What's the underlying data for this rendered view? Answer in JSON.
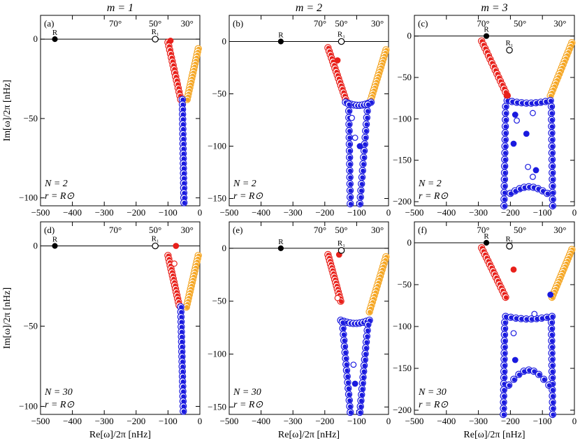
{
  "figure": {
    "col_titles": [
      "m = 1",
      "m = 2",
      "m = 3"
    ],
    "y_label": "Im[ω]/2π [nHz]",
    "x_label": "Re[ω]/2π [nHz]",
    "x_ticks": [
      -500,
      -400,
      -300,
      -200,
      -100,
      0
    ],
    "colors": {
      "red": "#e8201a",
      "orange": "#f5a623",
      "blue": "#1a1adf",
      "black": "#000000"
    },
    "legend_r": "r = R⊙"
  },
  "chart_data": [
    {
      "id": "a",
      "type": "scatter",
      "panel_label": "(a)",
      "m": 1,
      "N_label": "N = 2",
      "N": 2,
      "xlim": [
        -500,
        0
      ],
      "ylim": [
        -105,
        15
      ],
      "yticks": [
        0,
        -50,
        -100
      ],
      "lat_labels": [
        {
          "text": "70°",
          "x": -265
        },
        {
          "text": "50°",
          "x": -140
        },
        {
          "text": "30°",
          "x": -40
        }
      ],
      "R": {
        "label": "R",
        "x": -455,
        "y": 0
      },
      "R1": {
        "label": "R₁",
        "x": -140,
        "y": 0
      },
      "red": {
        "x_range": [
          -100,
          -60
        ],
        "y_range": [
          -2,
          -38
        ]
      },
      "orange": {
        "x_range": [
          -5,
          -40
        ],
        "y_range": [
          -6,
          -38
        ]
      },
      "blue": {
        "x_start": -55,
        "x_end": -50,
        "y_start": -38,
        "y_end": -103
      },
      "extra_points": [
        {
          "color": "red",
          "x": -92,
          "y": -1,
          "filled": true
        }
      ]
    },
    {
      "id": "b",
      "type": "scatter",
      "panel_label": "(b)",
      "m": 2,
      "N_label": "N = 2",
      "N": 2,
      "xlim": [
        -500,
        0
      ],
      "ylim": [
        -157,
        25
      ],
      "yticks": [
        0,
        -50,
        -100,
        -150
      ],
      "lat_labels": [
        {
          "text": "70°",
          "x": -215
        },
        {
          "text": "50°",
          "x": -148
        },
        {
          "text": "30°",
          "x": -35
        }
      ],
      "R": {
        "label": "R",
        "x": -338,
        "y": 0
      },
      "R1": {
        "label": "R₁",
        "x": -148,
        "y": 0
      },
      "red": {
        "x_range": [
          -190,
          -135
        ],
        "y_range": [
          -6,
          -55
        ]
      },
      "orange": {
        "x_range": [
          -8,
          -55
        ],
        "y_range": [
          -8,
          -55
        ]
      },
      "blue_band": {
        "x_from": -135,
        "x_to": -55,
        "y": -58
      },
      "blue_branches": [
        {
          "x_start": -125,
          "x_end": -120,
          "y_start": -60,
          "y_end": -155
        },
        {
          "x_start": -65,
          "x_end": -90,
          "y_start": -60,
          "y_end": -155
        }
      ],
      "extra_points": [
        {
          "color": "red",
          "x": -160,
          "y": -18,
          "filled": true
        },
        {
          "color": "blue",
          "x": -115,
          "y": -73,
          "filled": false
        },
        {
          "color": "blue",
          "x": -105,
          "y": -92,
          "filled": false
        },
        {
          "color": "blue",
          "x": -90,
          "y": -100,
          "filled": true
        }
      ]
    },
    {
      "id": "c",
      "type": "scatter",
      "panel_label": "(c)",
      "m": 3,
      "N_label": "N = 2",
      "N": 2,
      "xlim": [
        -500,
        0
      ],
      "ylim": [
        -205,
        25
      ],
      "yticks": [
        0,
        -50,
        -100,
        -150,
        -200
      ],
      "lat_labels": [
        {
          "text": "70°",
          "x": -285
        },
        {
          "text": "50°",
          "x": -170
        },
        {
          "text": "30°",
          "x": -45
        }
      ],
      "R": {
        "label": "R",
        "x": -275,
        "y": 0
      },
      "R1": {
        "label": "R₁",
        "x": -203,
        "y": -17
      },
      "red": {
        "x_range": [
          -290,
          -210
        ],
        "y_range": [
          -6,
          -72
        ]
      },
      "orange": {
        "x_range": [
          -8,
          -75
        ],
        "y_range": [
          -8,
          -72
        ]
      },
      "blue_band": {
        "x_from": -210,
        "x_to": -75,
        "y": -78
      },
      "blue_branches": [
        {
          "x_start": -215,
          "x_end": -220,
          "y_start": -85,
          "y_end": -205
        },
        {
          "x_start": -72,
          "x_end": -68,
          "y_start": -85,
          "y_end": -205
        }
      ],
      "blue_arc": {
        "x_from": -200,
        "x_to": -85,
        "y_edge": -190,
        "y_top": -182
      },
      "extra_points": [
        {
          "color": "red",
          "x": -210,
          "y": -72,
          "filled": true
        },
        {
          "color": "blue",
          "x": -185,
          "y": -95,
          "filled": true
        },
        {
          "color": "blue",
          "x": -180,
          "y": -102,
          "filled": false
        },
        {
          "color": "blue",
          "x": -130,
          "y": -93,
          "filled": false
        },
        {
          "color": "blue",
          "x": -150,
          "y": -118,
          "filled": true
        },
        {
          "color": "blue",
          "x": -190,
          "y": -130,
          "filled": true
        },
        {
          "color": "blue",
          "x": -145,
          "y": -158,
          "filled": false
        },
        {
          "color": "blue",
          "x": -120,
          "y": -162,
          "filled": true
        },
        {
          "color": "blue",
          "x": -130,
          "y": -170,
          "filled": false
        }
      ]
    },
    {
      "id": "d",
      "type": "scatter",
      "panel_label": "(d)",
      "m": 1,
      "N_label": "N = 30",
      "N": 30,
      "xlim": [
        -500,
        0
      ],
      "ylim": [
        -105,
        15
      ],
      "yticks": [
        0,
        -50,
        -100
      ],
      "lat_labels": [
        {
          "text": "70°",
          "x": -265
        },
        {
          "text": "50°",
          "x": -140
        },
        {
          "text": "30°",
          "x": -40
        }
      ],
      "R": {
        "label": "R",
        "x": -455,
        "y": 0
      },
      "R1": {
        "label": "R₁",
        "x": -140,
        "y": 0
      },
      "red": {
        "x_range": [
          -100,
          -65
        ],
        "y_range": [
          -6,
          -37
        ]
      },
      "orange": {
        "x_range": [
          -5,
          -42
        ],
        "y_range": [
          -6,
          -38
        ]
      },
      "blue": {
        "x_start": -60,
        "x_end": -52,
        "y_start": -38,
        "y_end": -103
      },
      "extra_points": [
        {
          "color": "red",
          "x": -75,
          "y": 0,
          "filled": true
        },
        {
          "color": "red",
          "x": -80,
          "y": -11,
          "filled": false
        }
      ]
    },
    {
      "id": "e",
      "type": "scatter",
      "panel_label": "(e)",
      "m": 2,
      "N_label": "N = 30",
      "N": 30,
      "xlim": [
        -500,
        0
      ],
      "ylim": [
        -157,
        25
      ],
      "yticks": [
        0,
        -50,
        -100,
        -150
      ],
      "lat_labels": [
        {
          "text": "70°",
          "x": -215
        },
        {
          "text": "50°",
          "x": -148
        },
        {
          "text": "30°",
          "x": -35
        }
      ],
      "R": {
        "label": "R",
        "x": -338,
        "y": 0
      },
      "R1": {
        "label": "R₁",
        "x": -148,
        "y": -2
      },
      "red": {
        "x_range": [
          -190,
          -150
        ],
        "y_range": [
          -6,
          -50
        ]
      },
      "orange": {
        "x_range": [
          -8,
          -60
        ],
        "y_range": [
          -8,
          -60
        ]
      },
      "blue_band": {
        "x_from": -150,
        "x_to": -60,
        "y": -68
      },
      "blue_branches": [
        {
          "x_start": -145,
          "x_end": -120,
          "y_start": -70,
          "y_end": -155
        },
        {
          "x_start": -65,
          "x_end": -90,
          "y_start": -72,
          "y_end": -155
        }
      ],
      "extra_points": [
        {
          "color": "red",
          "x": -155,
          "y": -6,
          "filled": true
        },
        {
          "color": "red",
          "x": -160,
          "y": -47,
          "filled": false
        },
        {
          "color": "blue",
          "x": -110,
          "y": -110,
          "filled": false
        },
        {
          "color": "blue",
          "x": -105,
          "y": -128,
          "filled": true
        }
      ]
    },
    {
      "id": "f",
      "type": "scatter",
      "panel_label": "(f)",
      "m": 3,
      "N_label": "N = 30",
      "N": 30,
      "xlim": [
        -500,
        0
      ],
      "ylim": [
        -205,
        25
      ],
      "yticks": [
        0,
        -50,
        -100,
        -150,
        -200
      ],
      "lat_labels": [
        {
          "text": "70°",
          "x": -285
        },
        {
          "text": "50°",
          "x": -170
        },
        {
          "text": "30°",
          "x": -45
        }
      ],
      "R": {
        "label": "R",
        "x": -275,
        "y": 0
      },
      "R1": {
        "label": "R₁",
        "x": -203,
        "y": -4
      },
      "red": {
        "x_range": [
          -290,
          -215
        ],
        "y_range": [
          -6,
          -65
        ]
      },
      "orange": {
        "x_range": [
          -8,
          -70
        ],
        "y_range": [
          -8,
          -65
        ]
      },
      "blue_band": {
        "x_from": -215,
        "x_to": -70,
        "y": -88
      },
      "blue_branches": [
        {
          "x_start": -218,
          "x_end": -222,
          "y_start": -95,
          "y_end": -205
        },
        {
          "x_start": -72,
          "x_end": -68,
          "y_start": -95,
          "y_end": -205
        }
      ],
      "blue_arc": {
        "x_from": -205,
        "x_to": -80,
        "y_edge": -170,
        "y_top": -152
      },
      "extra_points": [
        {
          "color": "red",
          "x": -190,
          "y": -32,
          "filled": true
        },
        {
          "color": "blue",
          "x": -75,
          "y": -62,
          "filled": true
        },
        {
          "color": "blue",
          "x": -125,
          "y": -85,
          "filled": false
        },
        {
          "color": "blue",
          "x": -190,
          "y": -108,
          "filled": false
        },
        {
          "color": "blue",
          "x": -185,
          "y": -140,
          "filled": true
        }
      ]
    }
  ]
}
